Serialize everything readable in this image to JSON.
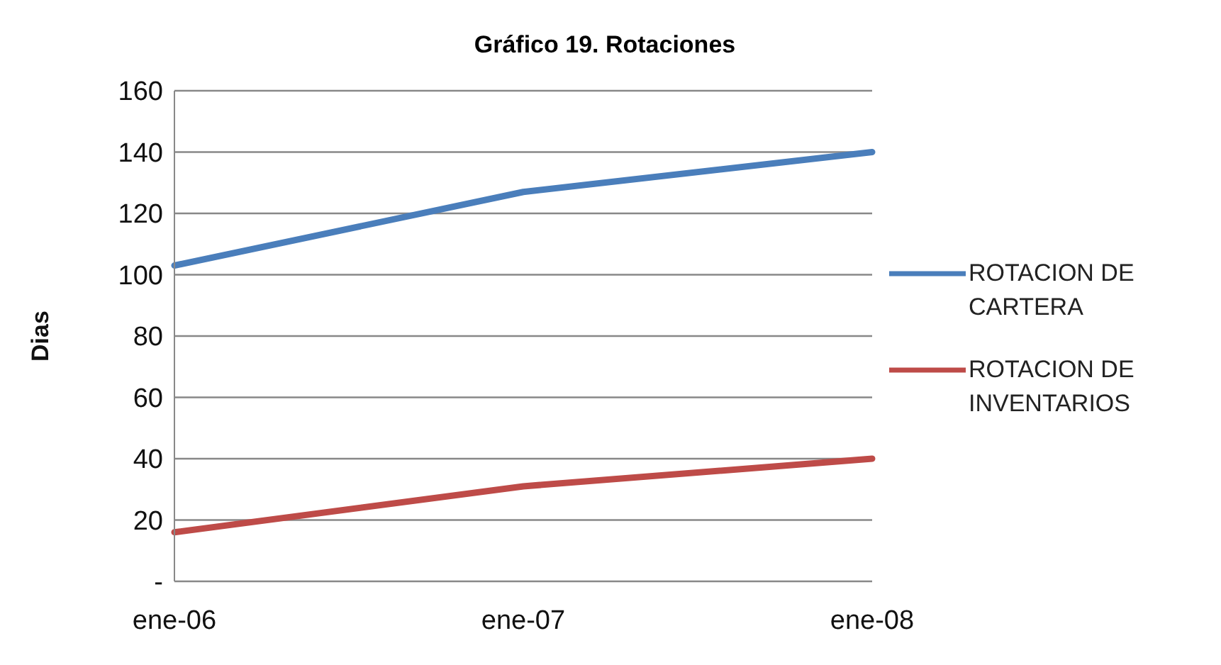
{
  "chart_data": {
    "type": "line",
    "title": "Gráfico 19. Rotaciones",
    "ylabel": "Dias",
    "categories": [
      "ene-06",
      "ene-07",
      "ene-08"
    ],
    "series": [
      {
        "name": "ROTACION DE CARTERA",
        "color": "#4a7ebb",
        "values": [
          103,
          127,
          140
        ]
      },
      {
        "name": "ROTACION DE INVENTARIOS",
        "color": "#be4b48",
        "values": [
          16,
          31,
          40
        ]
      }
    ],
    "ylim": [
      0,
      160
    ],
    "yticks": [
      {
        "value": 0,
        "label": "-"
      },
      20,
      40,
      60,
      80,
      100,
      120,
      140,
      160
    ],
    "grid": "y",
    "legend": "right",
    "marker": "none",
    "line_style": "solid"
  }
}
